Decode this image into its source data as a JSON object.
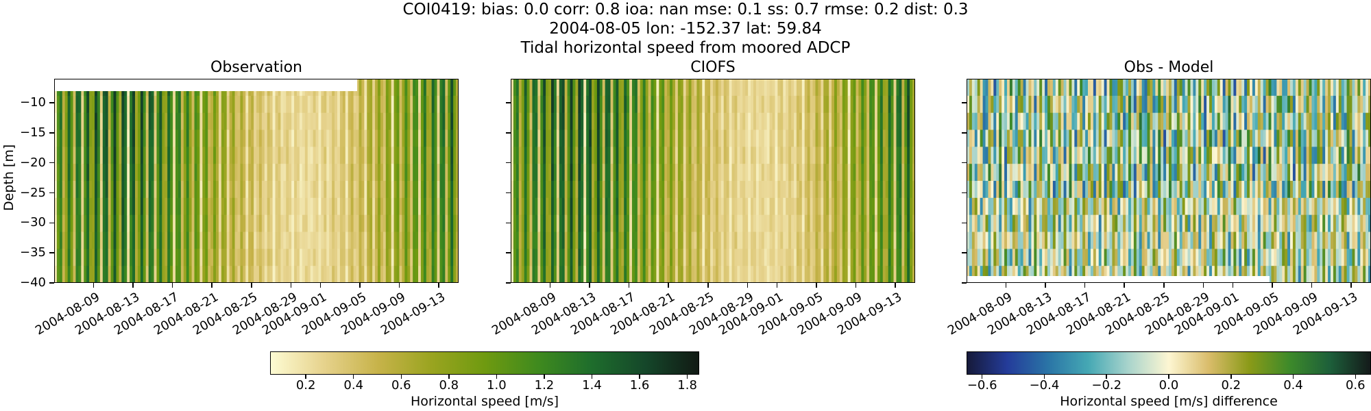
{
  "header": {
    "line1": "COI0419: bias: 0.0  corr: 0.8  ioa: nan  mse: 0.1  ss: 0.7  rmse: 0.2  dist: 0.3",
    "line2": "2004-08-05 lon: -152.37 lat: 59.84",
    "line3": "Tidal horizontal speed from moored ADCP"
  },
  "chart_data": [
    {
      "type": "heatmap",
      "title": "Observation",
      "ylabel": "Depth [m]",
      "ylim": [
        -40,
        -6
      ],
      "yticks": [
        -10,
        -15,
        -20,
        -25,
        -30,
        -35,
        -40
      ],
      "xticks": [
        "2004-08-09",
        "2004-08-13",
        "2004-08-17",
        "2004-08-21",
        "2004-08-25",
        "2004-08-29",
        "2004-09-01",
        "2004-09-05",
        "2004-09-09",
        "2004-09-13"
      ],
      "xlim": [
        "2004-08-05",
        "2004-09-15"
      ],
      "colormap": "speed",
      "clim": [
        0.05,
        1.85
      ]
    },
    {
      "type": "heatmap",
      "title": "CIOFS",
      "ylim": [
        -40,
        -6
      ],
      "xticks": [
        "2004-08-09",
        "2004-08-13",
        "2004-08-17",
        "2004-08-21",
        "2004-08-25",
        "2004-08-29",
        "2004-09-01",
        "2004-09-05",
        "2004-09-09",
        "2004-09-13"
      ],
      "xlim": [
        "2004-08-05",
        "2004-09-15"
      ],
      "colormap": "speed",
      "clim": [
        0.05,
        1.85
      ]
    },
    {
      "type": "heatmap",
      "title": "Obs - Model",
      "ylim": [
        -40,
        -6
      ],
      "xticks": [
        "2004-08-09",
        "2004-08-13",
        "2004-08-17",
        "2004-08-21",
        "2004-08-25",
        "2004-08-29",
        "2004-09-01",
        "2004-09-05",
        "2004-09-09",
        "2004-09-13"
      ],
      "xlim": [
        "2004-08-05",
        "2004-09-15"
      ],
      "colormap": "delta",
      "clim": [
        -0.65,
        0.65
      ]
    }
  ],
  "colorbars": [
    {
      "label": "Horizontal speed [m/s]",
      "ticks": [
        "0.2",
        "0.4",
        "0.6",
        "0.8",
        "1.0",
        "1.2",
        "1.4",
        "1.6",
        "1.8"
      ],
      "tick_values": [
        0.2,
        0.4,
        0.6,
        0.8,
        1.0,
        1.2,
        1.4,
        1.6,
        1.8
      ],
      "range": [
        0.05,
        1.85
      ],
      "colors": [
        "#fdfbd3",
        "#e6d28c",
        "#c7b34a",
        "#9aa420",
        "#6f9a10",
        "#3f8a1e",
        "#1e6d2c",
        "#15472a",
        "#111a14"
      ]
    },
    {
      "label": "Horizontal speed [m/s] difference",
      "ticks": [
        "−0.6",
        "−0.4",
        "−0.2",
        "0.0",
        "0.2",
        "0.4",
        "0.6"
      ],
      "tick_values": [
        -0.6,
        -0.4,
        -0.2,
        0.0,
        0.2,
        0.4,
        0.6
      ],
      "range": [
        -0.65,
        0.65
      ],
      "colors": [
        "#161a3a",
        "#243c9a",
        "#2a74a6",
        "#45a8b4",
        "#a9d4cc",
        "#fdf6d2",
        "#d9bc6a",
        "#8a9a18",
        "#3d8a2a",
        "#1d5f3a",
        "#141a1a"
      ]
    }
  ]
}
